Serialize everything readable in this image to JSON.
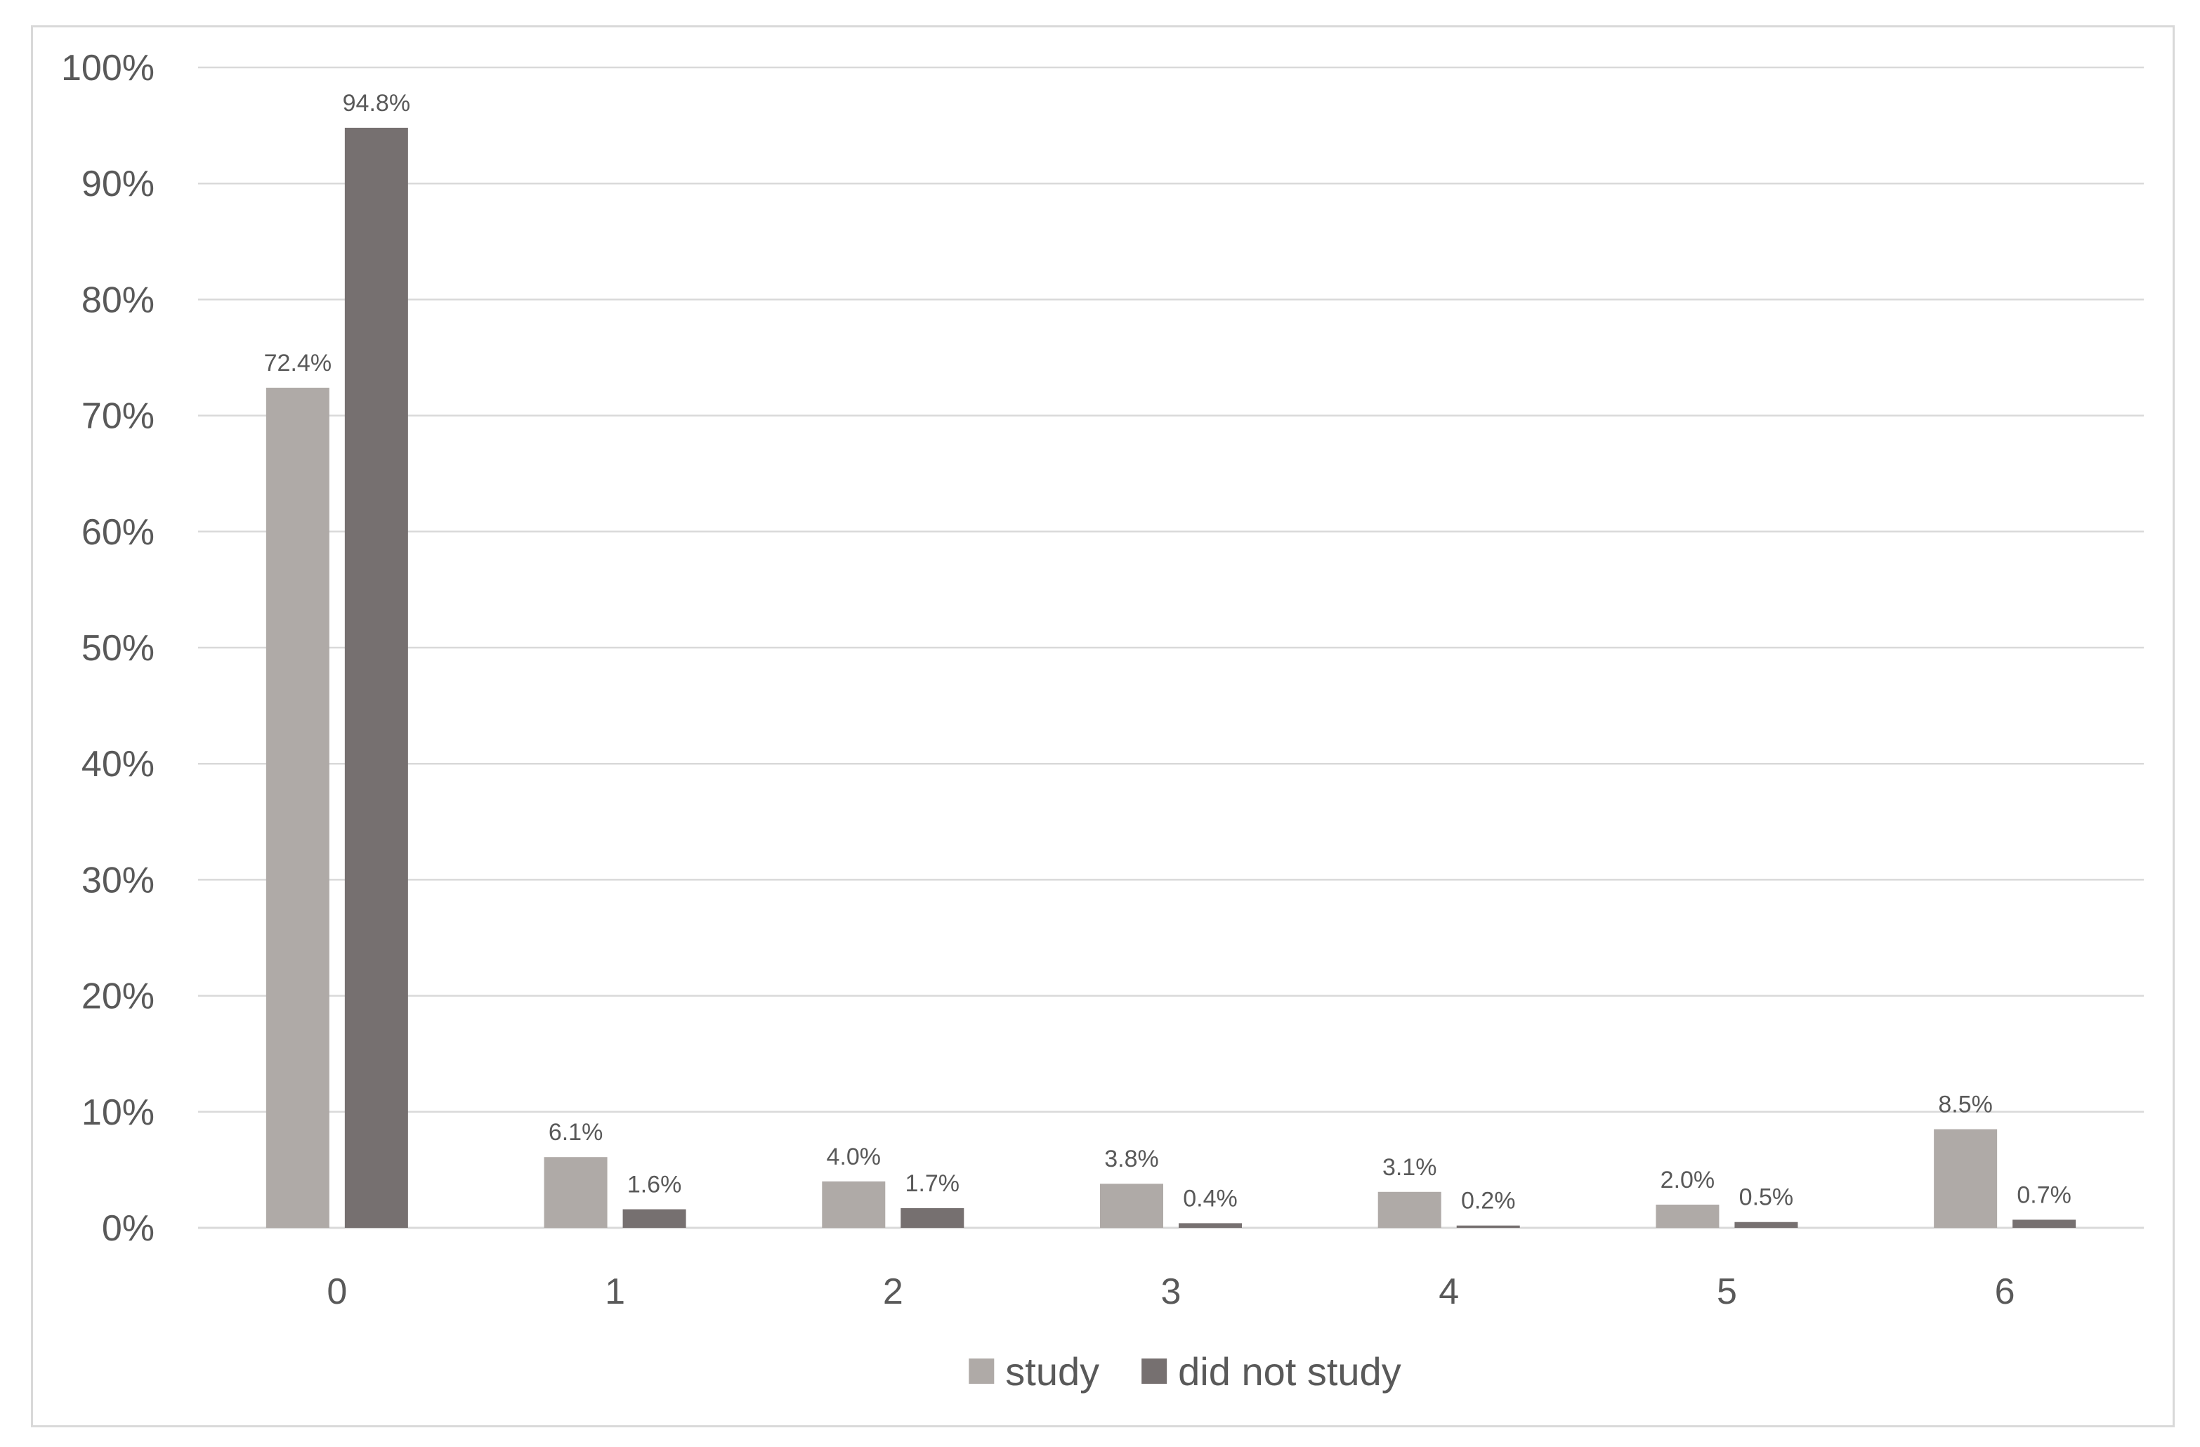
{
  "chart_data": {
    "type": "bar",
    "title": "",
    "xlabel": "",
    "ylabel": "",
    "categories": [
      "0",
      "1",
      "2",
      "3",
      "4",
      "5",
      "6"
    ],
    "series": [
      {
        "name": "study",
        "values": [
          72.4,
          6.1,
          4.0,
          3.8,
          3.1,
          2.0,
          8.5
        ],
        "labels": [
          "72.4%",
          "6.1%",
          "4.0%",
          "3.8%",
          "3.1%",
          "2.0%",
          "8.5%"
        ],
        "color": "#afaaa7"
      },
      {
        "name": "did not study",
        "values": [
          94.8,
          1.6,
          1.7,
          0.4,
          0.2,
          0.5,
          0.7
        ],
        "labels": [
          "94.8%",
          "1.6%",
          "1.7%",
          "0.4%",
          "0.2%",
          "0.5%",
          "0.7%"
        ],
        "color": "#767070"
      }
    ],
    "ylim": [
      0,
      100
    ],
    "yticks": [
      "0%",
      "10%",
      "20%",
      "30%",
      "40%",
      "50%",
      "60%",
      "70%",
      "80%",
      "90%",
      "100%"
    ],
    "grid": true,
    "legend_position": "bottom",
    "gridline_color": "#d9d9d9",
    "text_color": "#595959"
  }
}
